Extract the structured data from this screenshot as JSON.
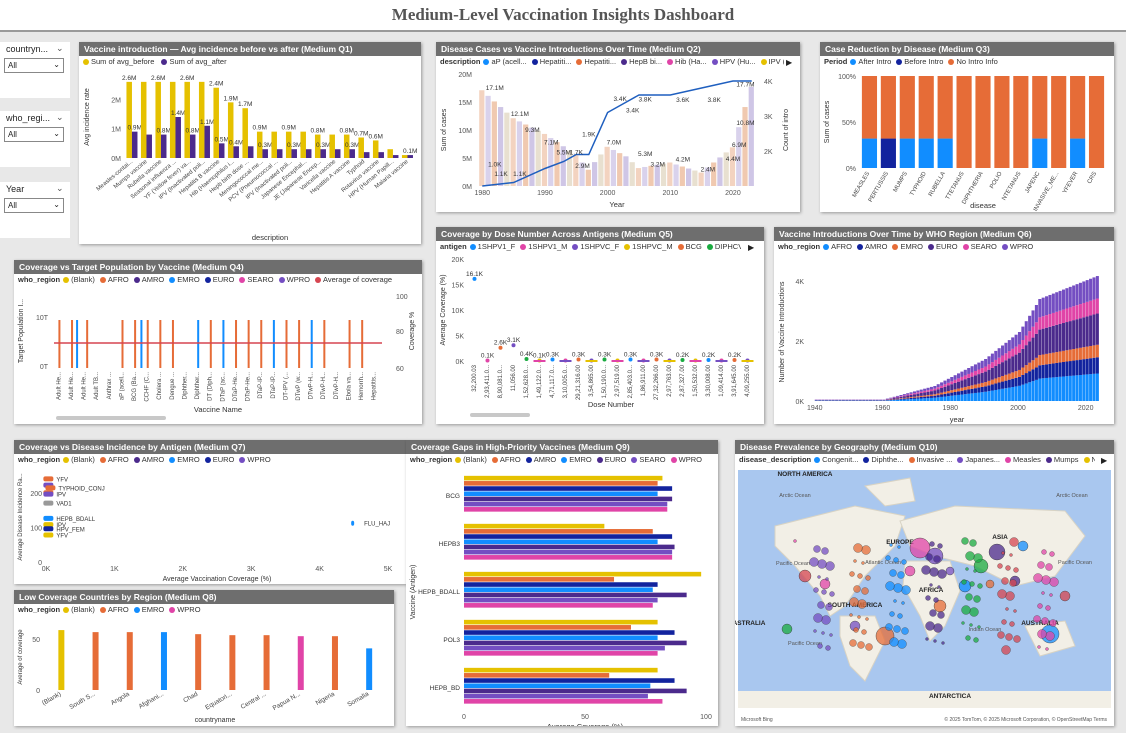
{
  "title": "Medium-Level Vaccination Insights Dashboard",
  "slicers": [
    {
      "label": "countryn...",
      "value": "All"
    },
    {
      "label": "who_regi...",
      "value": "All"
    },
    {
      "label": "Year",
      "value": "All"
    }
  ],
  "colors": {
    "yellow": "#e5c100",
    "purple": "#4b2a8c",
    "orange": "#e66c37",
    "blue": "#118dff",
    "darkblue": "#12239e",
    "pink": "#e044a7",
    "violet": "#744ec2",
    "teal": "#1aab40",
    "red": "#d64550",
    "peach": "#f0b897",
    "lilac": "#b9a7e0",
    "gold": "#d9b300"
  },
  "q1": {
    "title": "Vaccine introduction — Avg incidence before vs after (Medium Q1)",
    "legend": [
      "Sum of avg_before",
      "Sum of avg_after"
    ],
    "ylabel": "Avg incidence rate",
    "xlabel": "description",
    "yticks": [
      "0M",
      "1M",
      "2M"
    ],
    "chart_data": {
      "type": "bar",
      "ylim": [
        0,
        2.8
      ],
      "categories": [
        "Measles-contai...",
        "Mumps vaccine",
        "Rubella vaccine",
        "Seasonal influenza ...",
        "YF (Yellow fever) va...",
        "IPV (Inactivated poli...",
        "Hepatitis B vaccine",
        "Hib (Haemophilus i...",
        "Hepb birth dose ...",
        "Meningococcal me...",
        "PCV (Pneumococcal ...",
        "IPV (Inactivated poli...",
        "Japanese Encephal...",
        "JE (Japanese Encep...",
        "Varicella vaccine",
        "Hepatitis A vaccine",
        "Typhoid",
        "Rotavirus vaccine",
        "HPV (Human Papill...",
        "Malaria vaccine"
      ],
      "series": [
        {
          "name": "Sum of avg_before",
          "values": [
            2.6,
            2.6,
            2.6,
            2.6,
            2.6,
            2.6,
            2.4,
            1.9,
            1.7,
            0.9,
            0.9,
            0.9,
            0.9,
            0.8,
            0.8,
            0.8,
            0.7,
            0.6,
            0.3,
            0.1
          ],
          "labels": [
            "2.6M",
            "",
            "2.6M",
            "",
            "2.6M",
            "",
            "2.4M",
            "1.9M",
            "1.7M",
            "0.9M",
            "",
            "0.9M",
            "",
            "0.8M",
            "",
            "0.8M",
            "0.7M",
            "0.6M",
            "",
            ""
          ]
        },
        {
          "name": "Sum of avg_after",
          "values": [
            0.9,
            0.8,
            0.8,
            1.4,
            0.8,
            1.1,
            0.5,
            0.4,
            0.4,
            0.3,
            0.3,
            0.3,
            0.3,
            0.3,
            0.3,
            0.3,
            0.2,
            0.2,
            0.1,
            0.1
          ],
          "labels": [
            "0.9M",
            "",
            "0.8M",
            "1.4M",
            "0.8M",
            "1.1M",
            "0.5M",
            "0.4M",
            "",
            "0.3M",
            "",
            "0.3M",
            "",
            "0.3M",
            "",
            "0.3M",
            "",
            "",
            "",
            "0.1M"
          ]
        }
      ]
    }
  },
  "q2": {
    "title": "Disease Cases vs Vaccine Introductions Over Time (Medium Q2)",
    "legend_title": "description",
    "legend": [
      "aP (acell...",
      "Hepatiti...",
      "Hepatiti...",
      "HepB bi...",
      "Hib (Ha...",
      "HPV (Hu...",
      "IPV (Ina..."
    ],
    "ylabel": "Sum of cases",
    "y2label": "Count of intro",
    "xlabel": "Year",
    "yticks": [
      "0M",
      "5M",
      "10M",
      "15M",
      "20M"
    ],
    "y2ticks": [
      "2K",
      "3K",
      "4K"
    ],
    "xticks": [
      "1980",
      "1990",
      "2000",
      "2010",
      "2020"
    ],
    "chart_data": {
      "type": "line",
      "x": [
        1980,
        1985,
        1990,
        1993,
        1995,
        1997,
        2000,
        2003,
        2005,
        2010,
        2015,
        2020,
        2023
      ],
      "series": [
        {
          "name": "Sum of cases",
          "values": [
            17.1,
            12.1,
            9.3,
            7.1,
            5.5,
            2.9,
            7.0,
            5.3,
            3.2,
            4.2,
            2.4,
            6.9,
            17.7
          ]
        },
        {
          "name": "Count of intro",
          "values": [
            1.0,
            1.1,
            1.5,
            1.7,
            1.9,
            1.9,
            3.1,
            3.4,
            3.6,
            3.6,
            3.8,
            4.0,
            4.0
          ]
        }
      ]
    },
    "bar_labels": [
      "17.1M",
      "1.0K",
      "1.1K",
      "1.1K",
      "12.1M",
      "9.3M",
      "7.1M",
      "5.5M",
      "2.9M",
      "1.9K",
      "1.7K",
      "7.0M",
      "3.4K",
      "3.4K",
      "3.8K",
      "5.3M",
      "3.2M",
      "3.6K",
      "4.2M",
      "2.4M",
      "3.8K",
      "4.4M",
      "6.9M",
      "10.8M",
      "17.7M"
    ]
  },
  "q3": {
    "title": "Case Reduction by Disease (Medium Q3)",
    "legend_title": "Period",
    "legend": [
      "After Intro",
      "Before Intro",
      "No Intro Info"
    ],
    "ylabel": "Sum of cases",
    "xlabel": "disease",
    "yticks": [
      "0%",
      "50%",
      "100%"
    ],
    "chart_data": {
      "type": "bar",
      "categories": [
        "MEASLES",
        "PERTUSSIS",
        "MUMPS",
        "TYPHOID",
        "RUBELLA",
        "TTETANUS",
        "DIPHTHERIA",
        "POLIO",
        "NTETANUS",
        "JAPENC",
        "INVASIVE_ME...",
        "YFEVER",
        "CRS"
      ],
      "series": [
        {
          "name": "After Intro",
          "values": [
            32,
            0,
            32,
            32,
            32,
            0,
            0,
            0,
            0,
            32,
            0,
            32,
            0
          ]
        },
        {
          "name": "Before Intro",
          "values": [
            0,
            32,
            0,
            0,
            0,
            0,
            0,
            0,
            0,
            0,
            0,
            0,
            0
          ]
        },
        {
          "name": "No Intro Info",
          "values": [
            68,
            68,
            68,
            68,
            68,
            100,
            100,
            100,
            100,
            68,
            100,
            68,
            100
          ]
        }
      ]
    }
  },
  "q4": {
    "title": "Coverage vs Target Population by Vaccine (Medium Q4)",
    "legend_title": "who_region",
    "legend": [
      "(Blank)",
      "AFRO",
      "AMRO",
      "EMRO",
      "EURO",
      "SEARO",
      "WPRO",
      "Average of coverage"
    ],
    "ylabel": "Target Population I...",
    "y2label": "Coverage %",
    "xlabel": "Vaccine Name",
    "yticks": [
      "0T",
      "10T"
    ],
    "y2ticks": [
      "60",
      "80",
      "100"
    ],
    "categories": [
      "Adult He...",
      "Adult He...",
      "Adult He...",
      "Adult TB...",
      "Anthrax ...",
      "aP (acell...",
      "BCG (Ba...",
      "CCHF (C...",
      "Cholera ...",
      "Dengue ...",
      "Diphther...",
      "Diphther...",
      "DT (Diph...",
      "DTaP (ac...",
      "DTaP-He...",
      "DTaP-He...",
      "DTaP-IP...",
      "DTaP-IP...",
      "DT-IPV (...",
      "DTwP (w...",
      "DTwP-H...",
      "DTwP-H...",
      "DTwP-H...",
      "Ebola va...",
      "Hemorrh...",
      "Hepatitis..."
    ]
  },
  "q5": {
    "title": "Coverage by Dose Number Across Antigens (Medium Q5)",
    "legend_title": "antigen",
    "legend": [
      "1SHPV1_F",
      "1SHPV1_M",
      "1SHPVC_F",
      "1SHPVC_M",
      "BCG",
      "DIPHCV4"
    ],
    "ylabel": "Average Coverage (%)",
    "xlabel": "Dose Number",
    "yticks": [
      "0K",
      "5K",
      "10K",
      "15K",
      "20K"
    ],
    "xcats": [
      "32,200.03",
      "2,93,411.0...",
      "8,90,081.0...",
      "11,056.00",
      "1,52,628.0...",
      "1,49,122.0...",
      "4,71,117.0...",
      "3,10,005.0...",
      "29,21,316.00",
      "3,54,865.00",
      "1,50,190.0...",
      "2,97,519.00",
      "2,85,403.0...",
      "1,86,911.00",
      "27,32,266.00",
      "2,97,763.00",
      "2,87,327.00",
      "1,50,532.00",
      "3,30,008.00",
      "1,09,414.00",
      "3,91,645.00",
      "4,09,255.00"
    ],
    "chart_data": {
      "type": "scatter",
      "x": [
        1,
        2,
        3,
        4,
        5,
        6,
        7,
        8,
        9,
        10,
        11,
        12,
        13,
        14,
        15,
        16,
        17,
        18,
        19,
        20,
        21,
        22
      ],
      "y": [
        16.1,
        0.1,
        2.6,
        3.1,
        0.4,
        0.1,
        0.3,
        0.1,
        0.3,
        0.1,
        0.3,
        0.1,
        0.3,
        0.1,
        0.3,
        0.1,
        0.2,
        0.1,
        0.2,
        0.1,
        0.2,
        0.1
      ],
      "labels": [
        "16.1K",
        "0.1K",
        "2.6K",
        "3.1K",
        "0.4K",
        "0.1K",
        "0.3K",
        "",
        "0.3K",
        "",
        "0.3K",
        "",
        "0.3K",
        "",
        "0.3K",
        "",
        "0.2K",
        "",
        "0.2K",
        "",
        "0.2K",
        ""
      ]
    }
  },
  "q6": {
    "title": "Vaccine Introductions Over Time by WHO Region (Medium Q6)",
    "legend_title": "who_region",
    "legend": [
      "AFRO",
      "AMRO",
      "EMRO",
      "EURO",
      "SEARO",
      "WPRO"
    ],
    "ylabel": "Number of Vaccine Introductions",
    "xlabel": "year",
    "yticks": [
      "0K",
      "2K",
      "4K"
    ],
    "xticks": [
      "1940",
      "1960",
      "1980",
      "2000",
      "2020"
    ],
    "chart_data": {
      "type": "bar",
      "x_range": [
        1940,
        2023
      ],
      "ylim": [
        0,
        4.5
      ]
    }
  },
  "q7": {
    "title": "Coverage vs Disease Incidence by Antigen (Medium Q7)",
    "legend_title": "who_region",
    "legend": [
      "(Blank)",
      "AFRO",
      "AMRO",
      "EMRO",
      "EURO",
      "WPRO"
    ],
    "ylabel": "Average Disease Incidence Ra...",
    "xlabel": "Average Vaccination Coverage (%)",
    "yticks": [
      "0",
      "100",
      "200"
    ],
    "xticks": [
      "0K",
      "1K",
      "2K",
      "3K",
      "4K",
      "5K"
    ],
    "labels": [
      "YFV",
      "TYPHOID_CONJ",
      "VAD1",
      "HEPB_BDALL",
      "IPV",
      "HPV_FEM",
      "YFV",
      "FLU_HAJ"
    ]
  },
  "q8": {
    "title": "Low Coverage Countries by Region (Medium Q8)",
    "legend_title": "who_region",
    "legend": [
      "(Blank)",
      "AFRO",
      "EMRO",
      "WPRO"
    ],
    "ylabel": "Average of coverage",
    "xlabel": "countryname",
    "yticks": [
      "0",
      "50"
    ],
    "chart_data": {
      "type": "bar",
      "categories": [
        "(Blank)",
        "South S...",
        "Angola",
        "Afghani...",
        "Chad",
        "Equatori...",
        "Central ...",
        "Papua N...",
        "Nigeria",
        "Somalia"
      ],
      "values": [
        59,
        57,
        57,
        57,
        55,
        54,
        54,
        53,
        53,
        41
      ],
      "regions": [
        "(Blank)",
        "AFRO",
        "AFRO",
        "EMRO",
        "AFRO",
        "AFRO",
        "AFRO",
        "WPRO",
        "AFRO",
        "EMRO"
      ]
    }
  },
  "q9": {
    "title": "Coverage Gaps in High-Priority Vaccines (Medium Q9)",
    "legend_title": "who_region",
    "legend": [
      "(Blank)",
      "AFRO",
      "AMRO",
      "EMRO",
      "EURO",
      "SEARO",
      "WPRO"
    ],
    "ylabel": "Vaccine (Antigen)",
    "xlabel": "Average Coverage (%)",
    "xticks": [
      "0",
      "50",
      "100"
    ],
    "chart_data": {
      "type": "bar",
      "categories": [
        "BCG",
        "HEPB3",
        "HEPB_BDALL",
        "POL3",
        "HEPB_BD"
      ],
      "series": [
        {
          "name": "(Blank)",
          "values": [
            82,
            58,
            98,
            80,
            80
          ]
        },
        {
          "name": "AFRO",
          "values": [
            80,
            78,
            62,
            69,
            60
          ]
        },
        {
          "name": "AMRO",
          "values": [
            86,
            86,
            80,
            87,
            87
          ]
        },
        {
          "name": "EMRO",
          "values": [
            80,
            80,
            78,
            80,
            77
          ]
        },
        {
          "name": "EURO",
          "values": [
            86,
            87,
            92,
            92,
            92
          ]
        },
        {
          "name": "SEARO",
          "values": [
            84,
            86,
            80,
            83,
            76
          ]
        },
        {
          "name": "WPRO",
          "values": [
            84,
            86,
            78,
            80,
            82
          ]
        }
      ]
    }
  },
  "q10": {
    "title": "Disease Prevalence by Geography (Medium Q10)",
    "legend_title": "disease_description",
    "legend": [
      "Congenit...",
      "Diphthe...",
      "Invasive ...",
      "Japanes...",
      "Measles",
      "Mumps",
      "Neonat..."
    ],
    "map_labels": [
      "NORTH AMERICA",
      "EUROPE",
      "ASIA",
      "SOUTH AMERICA",
      "AFRICA",
      "AUSTRALIA",
      "ANTARCTICA",
      "ASTRALIA",
      "Arctic Ocean",
      "Arctic Ocean",
      "Pacific Ocean",
      "Atlantic Ocean",
      "Pacific Ocean",
      "Indian Ocean",
      "Pacific Ocean"
    ],
    "attribution": "© 2025 TomTom, © 2025 Microsoft Corporation, © OpenStreetMap  Terms",
    "bing": "Microsoft Bing"
  }
}
